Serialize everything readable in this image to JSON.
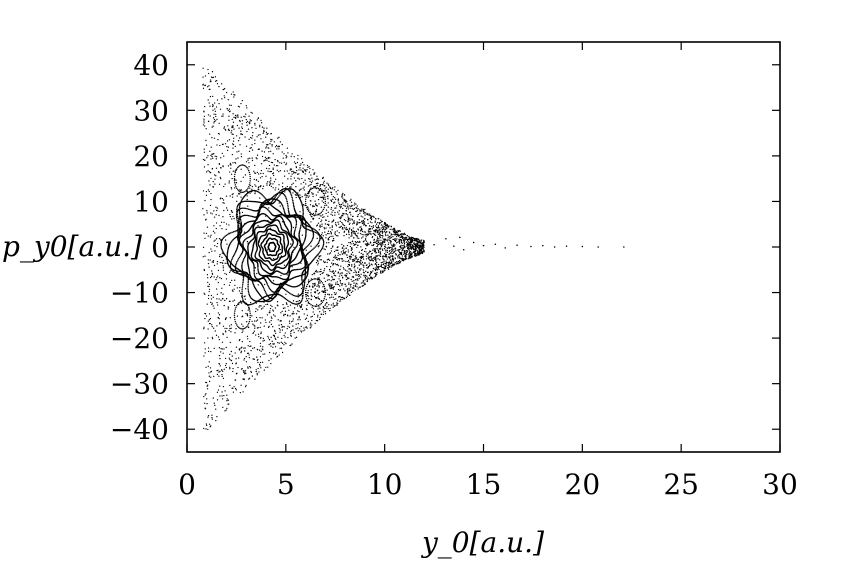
{
  "chart_data": {
    "type": "scatter",
    "title": "",
    "xlabel": "y_0[a.u.]",
    "ylabel": "p_y0[a.u.]",
    "xlim": [
      0,
      30
    ],
    "ylim": [
      -45,
      45
    ],
    "xticks": [
      0,
      5,
      10,
      15,
      20,
      25,
      30
    ],
    "yticks": [
      40,
      30,
      20,
      10,
      0,
      -10,
      -20,
      -30,
      -40
    ],
    "xtick_labels": [
      "0",
      "5",
      "10",
      "15",
      "20",
      "25",
      "30"
    ],
    "ytick_labels": [
      "40",
      "30",
      "20",
      "10",
      "0",
      "−10",
      "−20",
      "−30",
      "−40"
    ],
    "grid": false,
    "marker_color": "#000000",
    "features": {
      "central_island_center": [
        4.3,
        0.0
      ],
      "central_island_max_radius": [
        2.2,
        12.0
      ],
      "chaotic_triangle_vertices": [
        [
          0.8,
          40.0
        ],
        [
          0.8,
          -40.0
        ],
        [
          12.0,
          0.0
        ]
      ],
      "tail_points": [
        [
          12.5,
          0.5
        ],
        [
          13.1,
          1.8
        ],
        [
          13.5,
          0.2
        ],
        [
          13.8,
          2.1
        ],
        [
          14.0,
          -0.6
        ],
        [
          14.5,
          1.0
        ],
        [
          15.0,
          0.3
        ],
        [
          15.6,
          0.6
        ],
        [
          16.1,
          -0.2
        ],
        [
          16.7,
          0.4
        ],
        [
          17.4,
          0.1
        ],
        [
          18.0,
          0.3
        ],
        [
          18.6,
          0.0
        ],
        [
          19.2,
          0.2
        ],
        [
          20.0,
          0.1
        ],
        [
          20.8,
          0.0
        ],
        [
          22.1,
          0.0
        ]
      ]
    }
  }
}
